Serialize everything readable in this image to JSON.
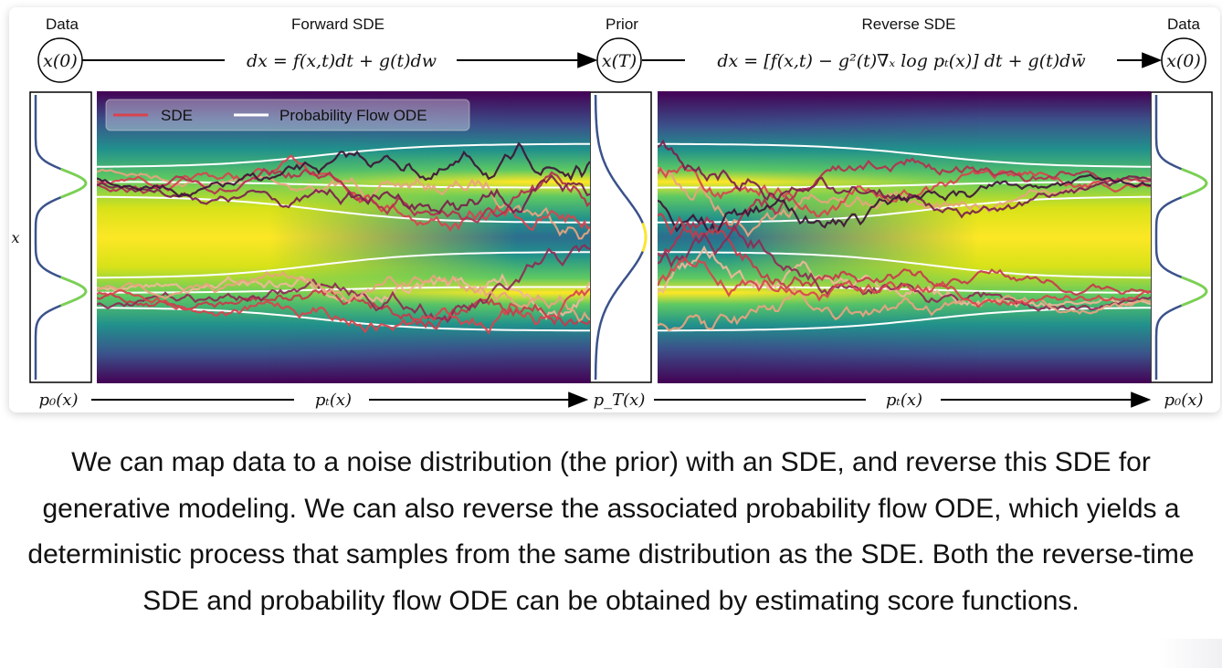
{
  "header": {
    "data_left": "Data",
    "forward_title": "Forward SDE",
    "prior_title": "Prior",
    "reverse_title": "Reverse SDE",
    "data_right": "Data"
  },
  "nodes": {
    "x0_left": "x(0)",
    "xT": "x(T)",
    "x0_right": "x(0)"
  },
  "equations": {
    "forward": "dx = f(x,t)dt + g(t)dw",
    "reverse": "dx = [f(x,t) − g²(t)∇ₓ log pₜ(x)] dt + g(t)dw̄"
  },
  "axis": {
    "y_label": "x"
  },
  "bottom_labels": {
    "p0_left": "p₀(x)",
    "pt_forward": "pₜ(x)",
    "pT": "p_T(x)",
    "pt_reverse": "pₜ(x)",
    "p0_right": "p₀(x)"
  },
  "legend": {
    "sde": "SDE",
    "ode": "Probability Flow ODE"
  },
  "colors": {
    "sde": "#d9434e",
    "ode": "#ffffff",
    "background": "#440154"
  },
  "caption": "We can map data to a noise distribution (the prior) with an SDE, and reverse this SDE for generative modeling. We can also reverse the associated probability flow ODE, which yields a deterministic process that samples from the same distribution as the SDE. Both the reverse-time SDE and probability flow ODE can be obtained by estimating score functions."
}
